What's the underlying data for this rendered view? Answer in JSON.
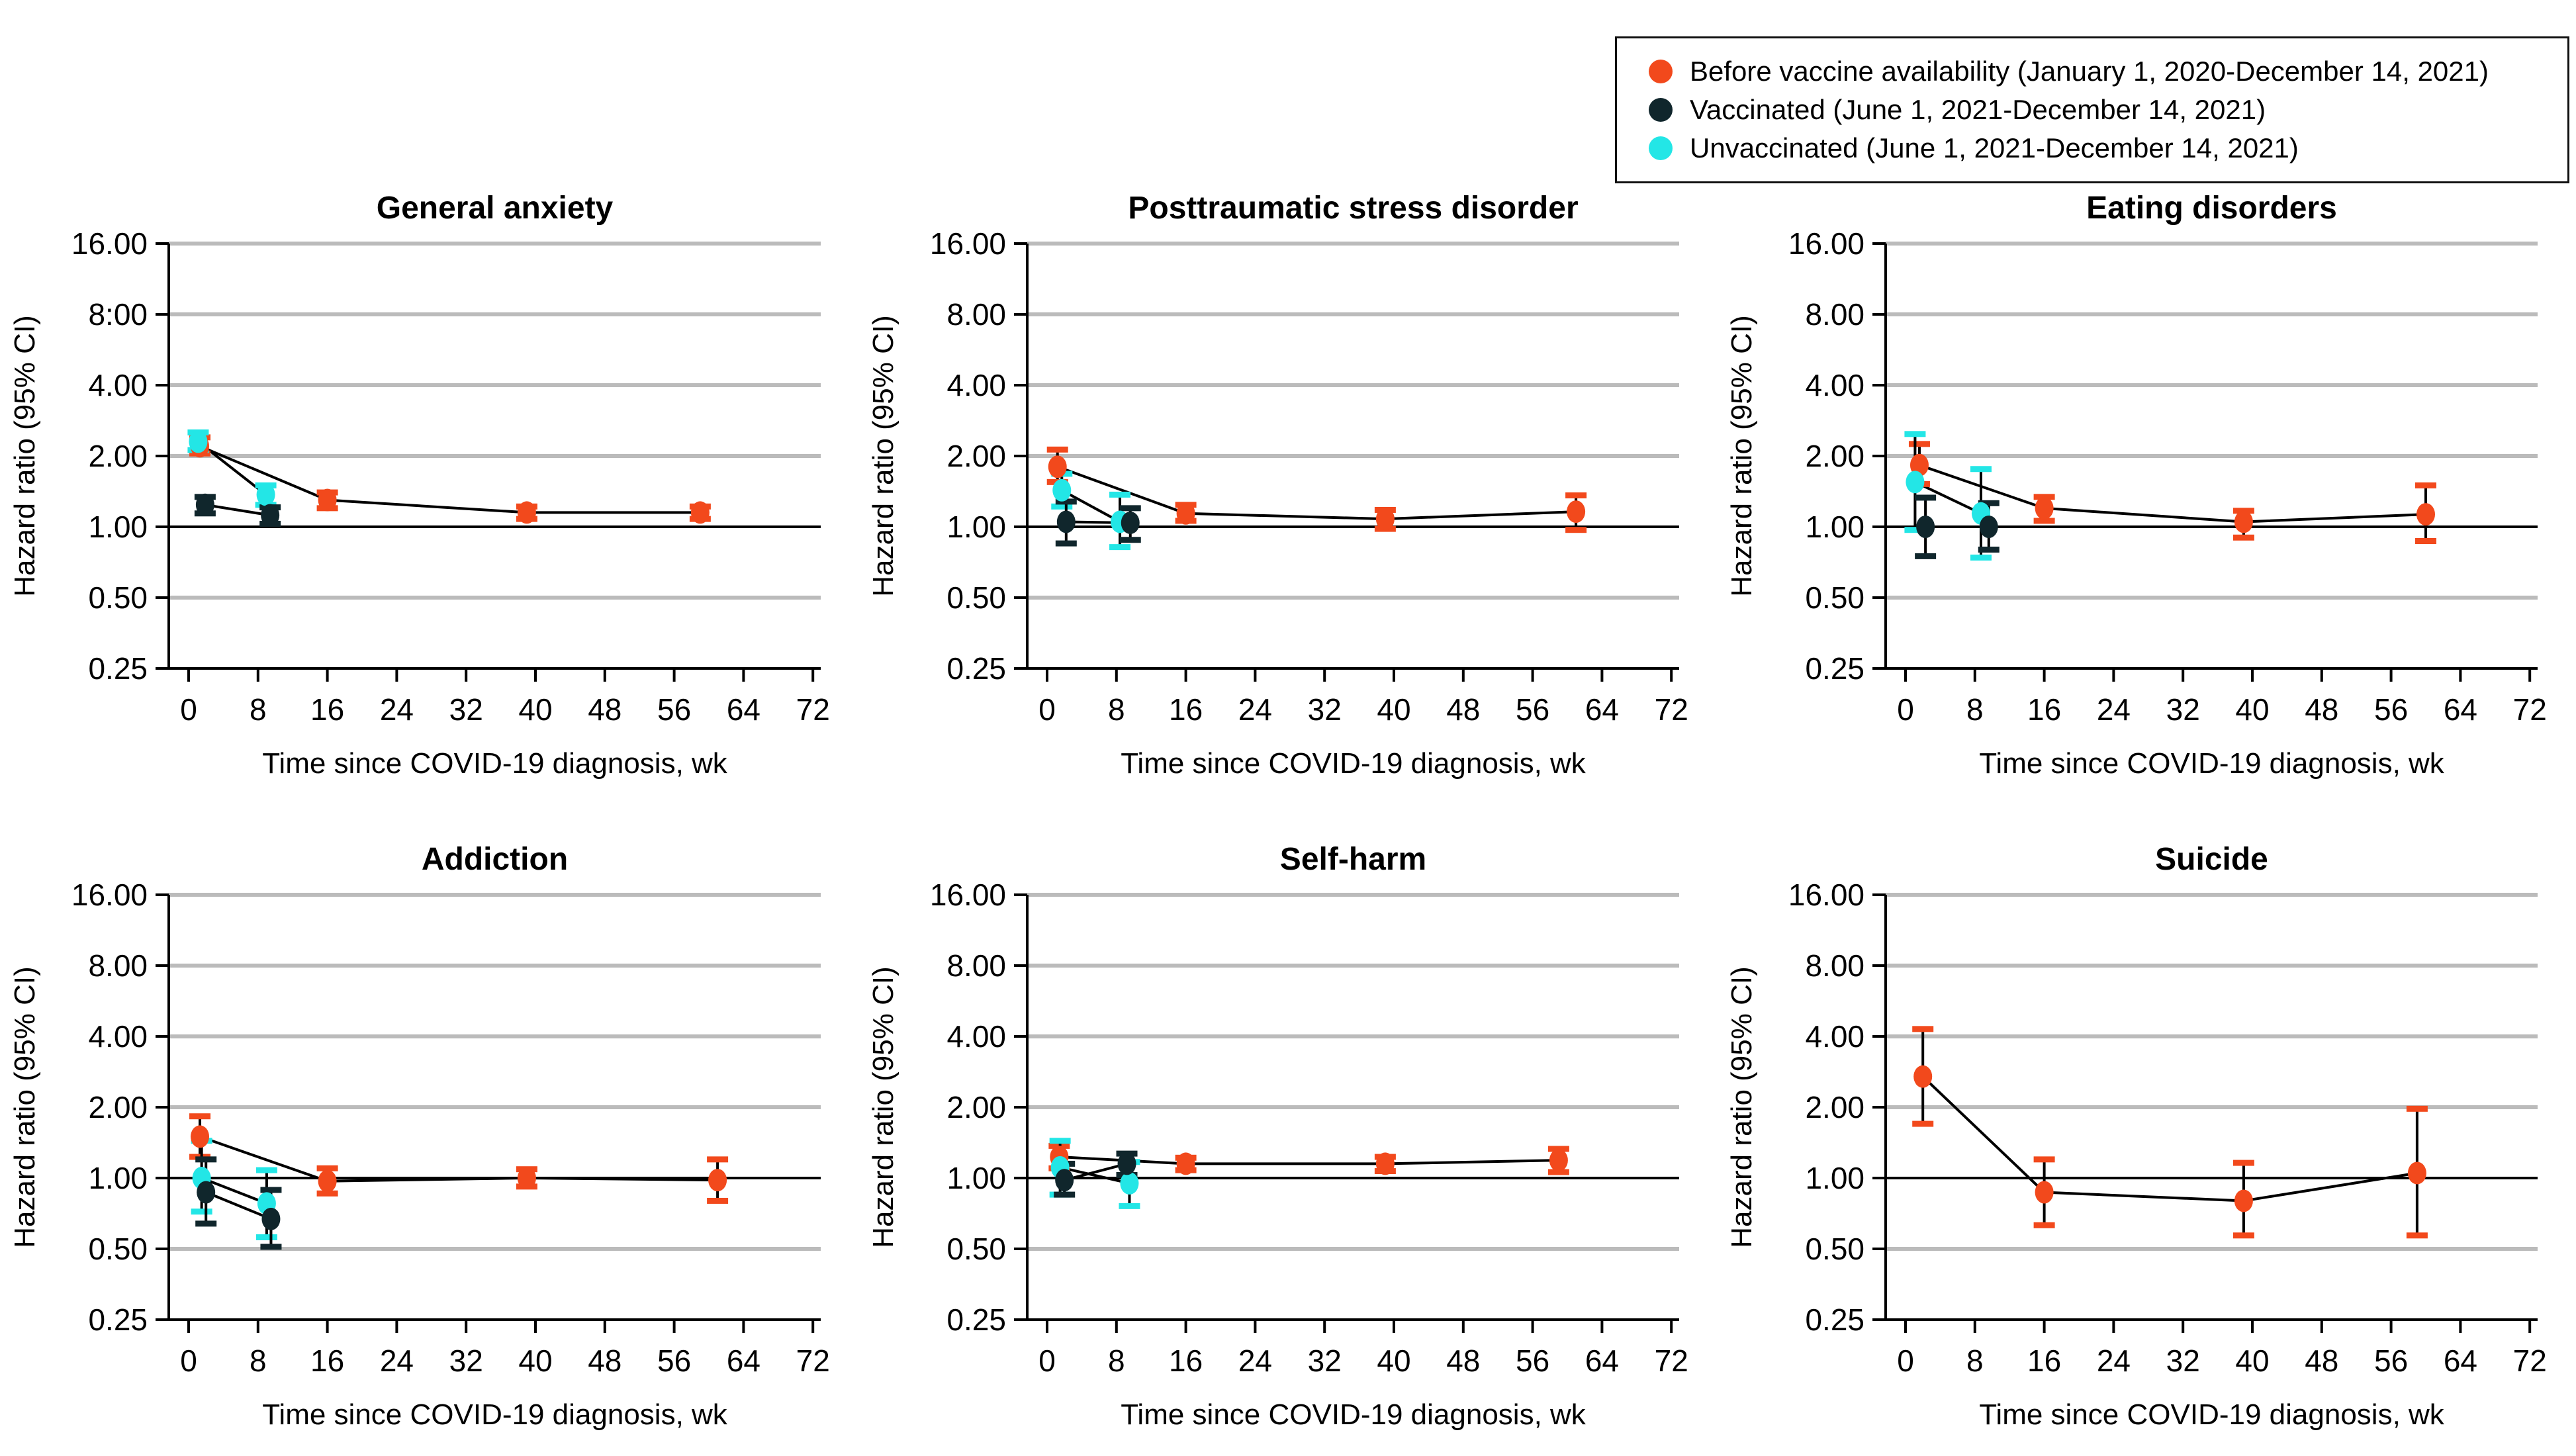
{
  "figure": {
    "background": "#ffffff"
  },
  "legend": {
    "items": [
      {
        "key": "before",
        "label": "Before vaccine availability (January 1, 2020-December 14, 2021)",
        "color": "#F2491C"
      },
      {
        "key": "vaccinated",
        "label": "Vaccinated (June 1, 2021-December 14, 2021)",
        "color": "#10262C"
      },
      {
        "key": "unvaccinated",
        "label": "Unvaccinated (June 1, 2021-December 14, 2021)",
        "color": "#23E6E6"
      }
    ]
  },
  "axes": {
    "x_label": "Time since COVID-19 diagnosis, wk",
    "y_label": "Hazard ratio (95% CI)",
    "x_ticks": [
      0,
      8,
      16,
      24,
      32,
      40,
      48,
      56,
      64,
      72
    ],
    "y_ticks": [
      16,
      8,
      4,
      2,
      1,
      0.5,
      0.25
    ],
    "y_tick_labels_default": [
      "16.00",
      "8.00",
      "4.00",
      "2.00",
      "1.00",
      "0.50",
      "0.25"
    ],
    "x_range_weeks": [
      0,
      72
    ],
    "y_range": [
      0.25,
      16
    ],
    "scale": "log2",
    "reference_line": 1.0,
    "grid_color": "#BBBBBB",
    "axis_color": "#000000"
  },
  "chart_data": [
    {
      "type": "line",
      "slug": "general-anxiety",
      "title": "General anxiety",
      "y_tick_labels": [
        "16.00",
        "8:00",
        "4.00",
        "2.00",
        "1.00",
        "0.50",
        "0.25"
      ],
      "series": [
        {
          "key": "before",
          "name": "Before vaccine availability",
          "points": [
            {
              "x": 1.3,
              "hr": 2.2,
              "lo": 2.05,
              "hi": 2.4
            },
            {
              "x": 16,
              "hr": 1.3,
              "lo": 1.2,
              "hi": 1.4
            },
            {
              "x": 39,
              "hr": 1.15,
              "lo": 1.08,
              "hi": 1.22
            },
            {
              "x": 59,
              "hr": 1.15,
              "lo": 1.08,
              "hi": 1.22
            }
          ]
        },
        {
          "key": "unvaccinated",
          "name": "Unvaccinated",
          "points": [
            {
              "x": 1.1,
              "hr": 2.3,
              "lo": 2.12,
              "hi": 2.52
            },
            {
              "x": 8.9,
              "hr": 1.37,
              "lo": 1.24,
              "hi": 1.5
            }
          ]
        },
        {
          "key": "vaccinated",
          "name": "Vaccinated",
          "points": [
            {
              "x": 1.9,
              "hr": 1.24,
              "lo": 1.14,
              "hi": 1.34
            },
            {
              "x": 9.4,
              "hr": 1.12,
              "lo": 1.03,
              "hi": 1.21
            }
          ]
        }
      ]
    },
    {
      "type": "line",
      "slug": "ptsd",
      "title": "Posttraumatic stress disorder",
      "y_tick_labels": [
        "16.00",
        "8.00",
        "4.00",
        "2.00",
        "1.00",
        "0.50",
        "0.25"
      ],
      "series": [
        {
          "key": "before",
          "name": "Before vaccine availability",
          "points": [
            {
              "x": 1.2,
              "hr": 1.8,
              "lo": 1.55,
              "hi": 2.13
            },
            {
              "x": 16,
              "hr": 1.14,
              "lo": 1.06,
              "hi": 1.24
            },
            {
              "x": 39,
              "hr": 1.08,
              "lo": 0.98,
              "hi": 1.18
            },
            {
              "x": 61,
              "hr": 1.16,
              "lo": 0.97,
              "hi": 1.36
            }
          ]
        },
        {
          "key": "unvaccinated",
          "name": "Unvaccinated",
          "points": [
            {
              "x": 1.7,
              "hr": 1.43,
              "lo": 1.22,
              "hi": 1.68
            },
            {
              "x": 8.4,
              "hr": 1.05,
              "lo": 0.82,
              "hi": 1.37
            }
          ]
        },
        {
          "key": "vaccinated",
          "name": "Vaccinated",
          "points": [
            {
              "x": 2.2,
              "hr": 1.05,
              "lo": 0.85,
              "hi": 1.28
            },
            {
              "x": 9.6,
              "hr": 1.04,
              "lo": 0.88,
              "hi": 1.2
            }
          ]
        }
      ]
    },
    {
      "type": "line",
      "slug": "eating-disorders",
      "title": "Eating disorders",
      "y_tick_labels": [
        "16.00",
        "8.00",
        "4.00",
        "2.00",
        "1.00",
        "0.50",
        "0.25"
      ],
      "series": [
        {
          "key": "before",
          "name": "Before vaccine availability",
          "points": [
            {
              "x": 1.6,
              "hr": 1.83,
              "lo": 1.52,
              "hi": 2.25
            },
            {
              "x": 16,
              "hr": 1.2,
              "lo": 1.06,
              "hi": 1.34
            },
            {
              "x": 39,
              "hr": 1.05,
              "lo": 0.9,
              "hi": 1.17
            },
            {
              "x": 60,
              "hr": 1.13,
              "lo": 0.87,
              "hi": 1.5
            }
          ]
        },
        {
          "key": "unvaccinated",
          "name": "Unvaccinated",
          "points": [
            {
              "x": 1.1,
              "hr": 1.55,
              "lo": 0.97,
              "hi": 2.48
            },
            {
              "x": 8.7,
              "hr": 1.14,
              "lo": 0.74,
              "hi": 1.76
            }
          ]
        },
        {
          "key": "vaccinated",
          "name": "Vaccinated",
          "points": [
            {
              "x": 2.3,
              "hr": 1.0,
              "lo": 0.75,
              "hi": 1.33
            },
            {
              "x": 9.6,
              "hr": 1.0,
              "lo": 0.8,
              "hi": 1.26
            }
          ]
        }
      ]
    },
    {
      "type": "line",
      "slug": "addiction",
      "title": "Addiction",
      "y_tick_labels": [
        "16.00",
        "8.00",
        "4.00",
        "2.00",
        "1.00",
        "0.50",
        "0.25"
      ],
      "series": [
        {
          "key": "before",
          "name": "Before vaccine availability",
          "points": [
            {
              "x": 1.3,
              "hr": 1.5,
              "lo": 1.23,
              "hi": 1.83
            },
            {
              "x": 16,
              "hr": 0.97,
              "lo": 0.86,
              "hi": 1.1
            },
            {
              "x": 39,
              "hr": 1.0,
              "lo": 0.92,
              "hi": 1.09
            },
            {
              "x": 61,
              "hr": 0.98,
              "lo": 0.8,
              "hi": 1.2
            }
          ]
        },
        {
          "key": "unvaccinated",
          "name": "Unvaccinated",
          "points": [
            {
              "x": 1.5,
              "hr": 1.0,
              "lo": 0.72,
              "hi": 1.44
            },
            {
              "x": 9.0,
              "hr": 0.78,
              "lo": 0.56,
              "hi": 1.08
            }
          ]
        },
        {
          "key": "vaccinated",
          "name": "Vaccinated",
          "points": [
            {
              "x": 2.0,
              "hr": 0.87,
              "lo": 0.64,
              "hi": 1.2
            },
            {
              "x": 9.5,
              "hr": 0.67,
              "lo": 0.51,
              "hi": 0.89
            }
          ]
        }
      ]
    },
    {
      "type": "line",
      "slug": "self-harm",
      "title": "Self-harm",
      "y_tick_labels": [
        "16.00",
        "8.00",
        "4.00",
        "2.00",
        "1.00",
        "0.50",
        "0.25"
      ],
      "series": [
        {
          "key": "before",
          "name": "Before vaccine availability",
          "points": [
            {
              "x": 1.4,
              "hr": 1.23,
              "lo": 1.1,
              "hi": 1.37
            },
            {
              "x": 16,
              "hr": 1.15,
              "lo": 1.08,
              "hi": 1.22
            },
            {
              "x": 39,
              "hr": 1.15,
              "lo": 1.07,
              "hi": 1.23
            },
            {
              "x": 59,
              "hr": 1.19,
              "lo": 1.06,
              "hi": 1.33
            }
          ]
        },
        {
          "key": "unvaccinated",
          "name": "Unvaccinated",
          "points": [
            {
              "x": 1.5,
              "hr": 1.11,
              "lo": 0.85,
              "hi": 1.44
            },
            {
              "x": 9.5,
              "hr": 0.95,
              "lo": 0.76,
              "hi": 1.17
            }
          ]
        },
        {
          "key": "vaccinated",
          "name": "Vaccinated",
          "points": [
            {
              "x": 2.0,
              "hr": 0.98,
              "lo": 0.85,
              "hi": 1.15
            },
            {
              "x": 9.2,
              "hr": 1.15,
              "lo": 1.03,
              "hi": 1.27
            }
          ]
        }
      ]
    },
    {
      "type": "line",
      "slug": "suicide",
      "title": "Suicide",
      "y_tick_labels": [
        "16.00",
        "8.00",
        "4.00",
        "2.00",
        "1.00",
        "0.50",
        "0.25"
      ],
      "series": [
        {
          "key": "before",
          "name": "Before vaccine availability",
          "points": [
            {
              "x": 2.0,
              "hr": 2.7,
              "lo": 1.7,
              "hi": 4.3
            },
            {
              "x": 16,
              "hr": 0.87,
              "lo": 0.63,
              "hi": 1.2
            },
            {
              "x": 39,
              "hr": 0.8,
              "lo": 0.57,
              "hi": 1.16
            },
            {
              "x": 59,
              "hr": 1.05,
              "lo": 0.57,
              "hi": 1.97
            }
          ]
        }
      ]
    }
  ]
}
